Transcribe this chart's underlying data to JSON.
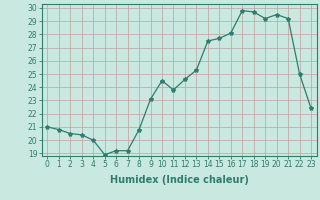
{
  "x": [
    0,
    1,
    2,
    3,
    4,
    5,
    6,
    7,
    8,
    9,
    10,
    11,
    12,
    13,
    14,
    15,
    16,
    17,
    18,
    19,
    20,
    21,
    22,
    23
  ],
  "y": [
    21.0,
    20.8,
    20.5,
    20.4,
    20.0,
    18.9,
    19.2,
    19.2,
    20.8,
    23.1,
    24.5,
    23.8,
    24.6,
    25.3,
    27.5,
    27.7,
    28.1,
    29.8,
    29.7,
    29.2,
    29.5,
    29.2,
    25.0,
    22.4
  ],
  "line_color": "#2e7d6e",
  "marker": "*",
  "marker_size": 3,
  "bg_color": "#c8e8e0",
  "grid_color": "#c0a0a0",
  "xlabel": "Humidex (Indice chaleur)",
  "ylim_min": 18.8,
  "ylim_max": 30.3,
  "xlim_min": -0.5,
  "xlim_max": 23.5,
  "yticks": [
    19,
    20,
    21,
    22,
    23,
    24,
    25,
    26,
    27,
    28,
    29,
    30
  ],
  "xticks": [
    0,
    1,
    2,
    3,
    4,
    5,
    6,
    7,
    8,
    9,
    10,
    11,
    12,
    13,
    14,
    15,
    16,
    17,
    18,
    19,
    20,
    21,
    22,
    23
  ],
  "label_fontsize": 7,
  "tick_fontsize": 5.5,
  "tick_color": "#2e7d6e"
}
